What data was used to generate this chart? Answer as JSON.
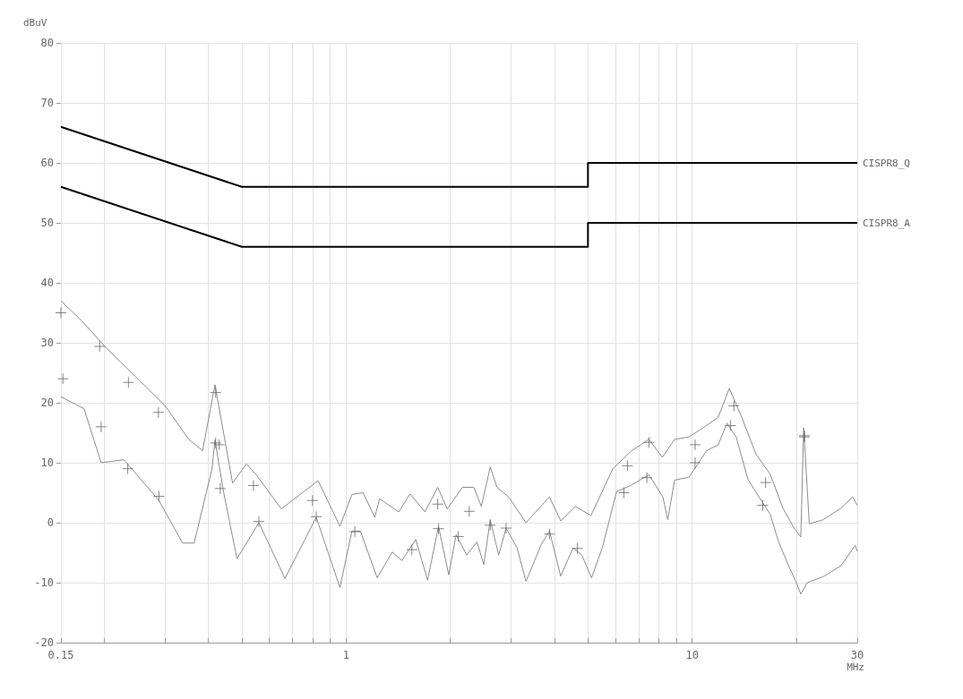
{
  "chart_data": {
    "type": "line",
    "ylabel": "dBuV",
    "xlabel": "MHz",
    "log": "x",
    "grid": true,
    "legend": false,
    "line_style": "solid",
    "xlim": [
      0.15,
      30
    ],
    "xticks": [
      {
        "value": 0.15,
        "label": "0.15"
      },
      {
        "value": 0.2,
        "label": null
      },
      {
        "value": 0.3,
        "label": null
      },
      {
        "value": 0.4,
        "label": null
      },
      {
        "value": 0.5,
        "label": null
      },
      {
        "value": 0.6,
        "label": null
      },
      {
        "value": 0.7,
        "label": null
      },
      {
        "value": 0.8,
        "label": null
      },
      {
        "value": 0.9,
        "label": null
      },
      1,
      {
        "value": 2,
        "label": null
      },
      {
        "value": 3,
        "label": null
      },
      {
        "value": 4,
        "label": null
      },
      {
        "value": 5,
        "label": null
      },
      {
        "value": 6,
        "label": null
      },
      {
        "value": 7,
        "label": null
      },
      {
        "value": 8,
        "label": null
      },
      {
        "value": 9,
        "label": null
      },
      10,
      {
        "value": 20,
        "label": null
      },
      30
    ],
    "ylim": [
      -20,
      80
    ],
    "yticks": [
      -20,
      -10,
      0,
      10,
      20,
      30,
      40,
      50,
      60,
      70,
      80
    ],
    "series": [
      {
        "name": "CISPR8_Q",
        "color": "#000000",
        "marker": "none",
        "x": [
          0.15,
          0.5,
          5,
          5,
          30
        ],
        "values": [
          66,
          56,
          56,
          60,
          60
        ]
      },
      {
        "name": "CISPR8_A",
        "color": "#000000",
        "marker": "none",
        "x": [
          0.15,
          0.5,
          5,
          5,
          30
        ],
        "values": [
          56,
          46,
          46,
          50,
          50
        ]
      },
      {
        "color": "#8c8c8c",
        "marker": "none",
        "x": [
          0.15,
          0.17,
          0.183,
          0.2,
          0.25,
          0.3,
          0.35,
          0.385,
          0.418,
          0.47,
          0.515,
          0.55,
          0.65,
          0.83,
          0.96,
          1.04,
          1.12,
          1.21,
          1.25,
          1.42,
          1.53,
          1.69,
          1.84,
          1.96,
          2.17,
          2.34,
          2.46,
          2.61,
          2.73,
          2.95,
          3.31,
          3.87,
          4.17,
          4.6,
          5.1,
          5.9,
          6.65,
          7.5,
          8.2,
          8.9,
          9.8,
          11,
          11.9,
          12.8,
          13.9,
          15.3,
          16.8,
          18.3,
          19.7,
          20.6,
          21,
          21.8,
          23.9,
          26.9,
          29.1,
          30
        ],
        "values": [
          37,
          34,
          32,
          29.5,
          24,
          19.5,
          14,
          12,
          23,
          6.6,
          9.8,
          8,
          2.3,
          7,
          -0.6,
          4.7,
          5,
          0.9,
          4,
          1.8,
          4.8,
          1.8,
          5.9,
          2.3,
          5.9,
          5.9,
          2.7,
          9.3,
          5.9,
          4.3,
          0,
          4.3,
          0.3,
          2.7,
          1.2,
          9,
          11.9,
          13.9,
          10.9,
          13.9,
          14.3,
          16.2,
          17.6,
          22.4,
          17.6,
          11.4,
          8.1,
          2.4,
          -0.9,
          -2.4,
          15.8,
          -0.2,
          0.5,
          2.4,
          4.3,
          2.9
        ]
      },
      {
        "color": "#8c8c8c",
        "marker": "none",
        "x": [
          0.15,
          0.175,
          0.196,
          0.228,
          0.288,
          0.337,
          0.364,
          0.41,
          0.418,
          0.443,
          0.484,
          0.56,
          0.666,
          0.82,
          0.96,
          1.04,
          1.1,
          1.23,
          1.36,
          1.45,
          1.59,
          1.72,
          1.85,
          1.98,
          2.08,
          2.23,
          2.39,
          2.5,
          2.61,
          2.76,
          2.9,
          3.12,
          3.31,
          3.66,
          3.87,
          4.17,
          4.53,
          4.8,
          5.12,
          5.5,
          6.05,
          6.65,
          7.5,
          8.23,
          8.5,
          8.9,
          9.8,
          11,
          11.9,
          12.6,
          13.4,
          14.5,
          15.6,
          16.8,
          17.8,
          19,
          20,
          20.6,
          21.5,
          23.9,
          26.9,
          29.6,
          30
        ],
        "values": [
          21,
          19,
          10,
          10.5,
          3.7,
          -3.4,
          -3.4,
          9,
          13.8,
          5,
          -6,
          0,
          -9.3,
          0.9,
          -10.8,
          -1.4,
          -1.4,
          -9.2,
          -4.9,
          -6.3,
          -2.8,
          -9.6,
          -0.6,
          -8.7,
          -2,
          -5.4,
          -3.2,
          -7,
          0.5,
          -5.4,
          -0.9,
          -4.2,
          -9.8,
          -3.7,
          -1.4,
          -8.9,
          -4.2,
          -5.4,
          -9.2,
          -4.2,
          5.2,
          6.2,
          8,
          4.3,
          0.5,
          7.1,
          7.6,
          12,
          13,
          16.6,
          14.3,
          7.2,
          4.3,
          1.4,
          -3.3,
          -7.2,
          -10,
          -11.9,
          -10,
          -9,
          -7.2,
          -3.8,
          -4.8
        ]
      },
      {
        "type": "scatter",
        "color": "#666666",
        "marker": "cross",
        "x": [
          0.15,
          0.194,
          0.235,
          0.287,
          0.42,
          0.43,
          0.54,
          0.8,
          1.84,
          2.27,
          6.5,
          7.5,
          10.2,
          13.2,
          16.3,
          21.1
        ],
        "values": [
          35,
          29.4,
          23.4,
          18.4,
          21.7,
          13,
          6.2,
          3.7,
          3.1,
          1.9,
          9.5,
          13.4,
          13,
          19.5,
          6.7,
          14.5
        ]
      },
      {
        "type": "scatter",
        "color": "#666666",
        "marker": "cross",
        "x": [
          0.152,
          0.196,
          0.234,
          0.288,
          0.42,
          0.433,
          0.56,
          0.82,
          1.06,
          1.55,
          1.85,
          2.11,
          2.61,
          2.9,
          3.87,
          4.66,
          6.35,
          7.4,
          10.2,
          12.9,
          16,
          21.1
        ],
        "values": [
          24,
          16,
          9,
          4.4,
          13.3,
          5.7,
          0.2,
          1,
          -1.5,
          -4.5,
          -1,
          -2.3,
          -0.4,
          -0.9,
          -1.9,
          -4.3,
          5,
          7.5,
          10,
          16.2,
          2.9,
          14.3
        ]
      }
    ]
  }
}
